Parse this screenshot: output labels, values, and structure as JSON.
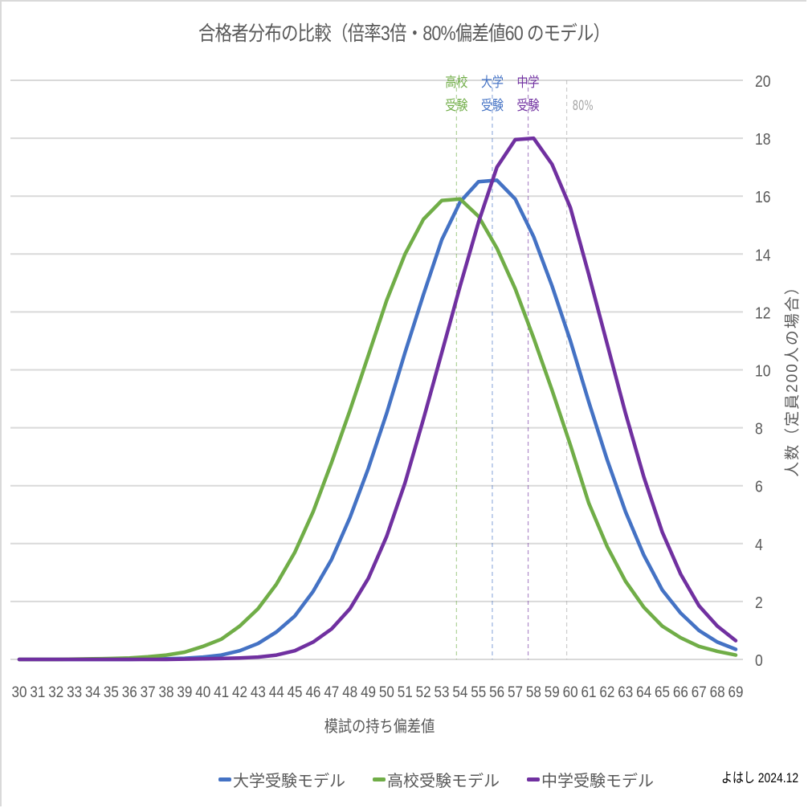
{
  "chart_data": {
    "type": "line",
    "title": "合格者分布の比較（倍率3倍・80%偏差値60 のモデル）",
    "xlabel": "模試の持ち偏差値",
    "ylabel": "人数（定員200人の場合）",
    "y_axis_position": "right",
    "ylim": [
      0,
      20
    ],
    "y_ticks": [
      0,
      2,
      4,
      6,
      8,
      10,
      12,
      14,
      16,
      18,
      20
    ],
    "grid": true,
    "legend_position": "bottom",
    "categories": [
      30,
      31,
      32,
      33,
      34,
      35,
      36,
      37,
      38,
      39,
      40,
      41,
      42,
      43,
      44,
      45,
      46,
      47,
      48,
      49,
      50,
      51,
      52,
      53,
      54,
      55,
      56,
      57,
      58,
      59,
      60,
      61,
      62,
      63,
      64,
      65,
      66,
      67,
      68,
      69
    ],
    "series": [
      {
        "name": "大学受験モデル",
        "color": "#4472c4",
        "values": [
          0,
          0,
          0,
          0,
          0,
          0,
          0,
          0.01,
          0.02,
          0.04,
          0.08,
          0.15,
          0.3,
          0.55,
          0.95,
          1.5,
          2.35,
          3.45,
          4.9,
          6.6,
          8.5,
          10.6,
          12.6,
          14.5,
          15.8,
          16.5,
          16.55,
          15.9,
          14.6,
          12.9,
          11.0,
          8.9,
          6.9,
          5.1,
          3.6,
          2.4,
          1.6,
          1.0,
          0.6,
          0.35
        ]
      },
      {
        "name": "高校受験モデル",
        "color": "#70ad47",
        "values": [
          0,
          0,
          0,
          0.01,
          0.02,
          0.03,
          0.05,
          0.09,
          0.15,
          0.25,
          0.45,
          0.7,
          1.15,
          1.75,
          2.6,
          3.7,
          5.1,
          6.8,
          8.6,
          10.5,
          12.4,
          14.0,
          15.2,
          15.85,
          15.9,
          15.3,
          14.2,
          12.8,
          11.1,
          9.3,
          7.4,
          5.4,
          3.9,
          2.7,
          1.8,
          1.15,
          0.75,
          0.45,
          0.28,
          0.15
        ]
      },
      {
        "name": "中学受験モデル",
        "color": "#7030a0",
        "values": [
          0,
          0,
          0,
          0,
          0,
          0,
          0,
          0,
          0,
          0.01,
          0.02,
          0.03,
          0.05,
          0.08,
          0.15,
          0.3,
          0.6,
          1.05,
          1.75,
          2.8,
          4.25,
          6.1,
          8.3,
          10.6,
          12.9,
          15.1,
          17.0,
          17.95,
          18.0,
          17.1,
          15.6,
          13.3,
          10.9,
          8.5,
          6.3,
          4.4,
          2.95,
          1.85,
          1.15,
          0.65
        ]
      }
    ],
    "annotations": [
      {
        "label_line1": "高校",
        "label_line2": "受験",
        "x": 53.8,
        "color": "#70ad47",
        "style": "dashed"
      },
      {
        "label_line1": "大学",
        "label_line2": "受験",
        "x": 55.75,
        "color": "#4472c4",
        "style": "dashed"
      },
      {
        "label_line1": "中学",
        "label_line2": "受験",
        "x": 57.7,
        "color": "#7030a0",
        "style": "dashed"
      },
      {
        "label_line1": "",
        "label_line2": "80%",
        "x": 59.8,
        "color": "#a6a6a6",
        "style": "dashed"
      }
    ]
  },
  "credit": "よはし 2024.12",
  "colors": {
    "text": "#595959",
    "grid": "#d9d9d9"
  }
}
